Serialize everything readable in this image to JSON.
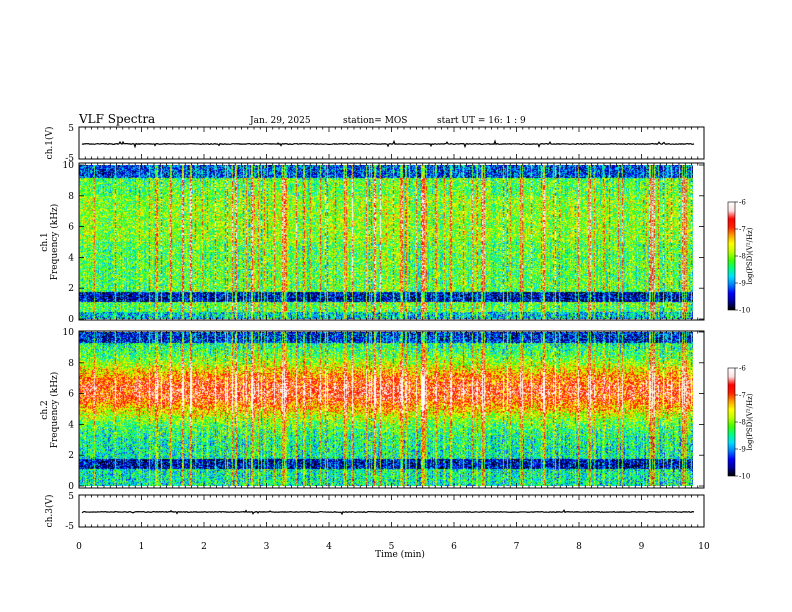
{
  "header": {
    "title": "VLF Spectra",
    "date": "Jan. 29, 2025",
    "station": "station= MOS",
    "start": "start UT =  16: 1  : 9"
  },
  "colors": {
    "colormap": [
      "#000000",
      "#0000a0",
      "#0000ff",
      "#0080ff",
      "#00e0ff",
      "#00ff80",
      "#40ff00",
      "#c0ff00",
      "#ffff00",
      "#ffa000",
      "#ff2000",
      "#ff0000",
      "#ffe0e0",
      "#ffffff"
    ],
    "trace": "#000000"
  },
  "chart_data": [
    {
      "type": "line",
      "panel": "ch1-waveform",
      "ylabel": "ch.1(V)",
      "ylim": [
        -5,
        5
      ],
      "yticks": [
        "5",
        "-5"
      ],
      "baseline_value": -0.3
    },
    {
      "type": "heatmap",
      "panel": "ch1-spectrogram",
      "ylabel": "ch.1\nFrequency (kHz)",
      "ylim": [
        0,
        10
      ],
      "yticks": [
        "0",
        "2",
        "4",
        "6",
        "8",
        "10"
      ],
      "colorbar": {
        "label": "log(PSD)(V²/Hz)",
        "range": [
          -10,
          -6
        ],
        "ticks": [
          "-6",
          "-7",
          "-8",
          "-9",
          "-10"
        ]
      },
      "profile": "ch1"
    },
    {
      "type": "heatmap",
      "panel": "ch2-spectrogram",
      "ylabel": "ch.2\nFrequency (kHz)",
      "ylim": [
        0,
        10
      ],
      "yticks": [
        "0",
        "2",
        "4",
        "6",
        "8",
        "10"
      ],
      "colorbar": {
        "label": "log(PSD)(V²/Hz)",
        "range": [
          -10,
          -6
        ],
        "ticks": [
          "-6",
          "-7",
          "-8",
          "-9",
          "-10"
        ]
      },
      "profile": "ch2"
    },
    {
      "type": "line",
      "panel": "ch3-waveform",
      "ylabel": "ch.3(V)",
      "ylim": [
        -5,
        5
      ],
      "yticks": [
        "5",
        "-5"
      ],
      "baseline_value": -0.3
    }
  ],
  "xaxis": {
    "label": "Time (min)",
    "range": [
      0,
      10
    ],
    "ticks": [
      "0",
      "1",
      "2",
      "3",
      "4",
      "5",
      "6",
      "7",
      "8",
      "9",
      "10"
    ],
    "data_end": 9.85
  }
}
